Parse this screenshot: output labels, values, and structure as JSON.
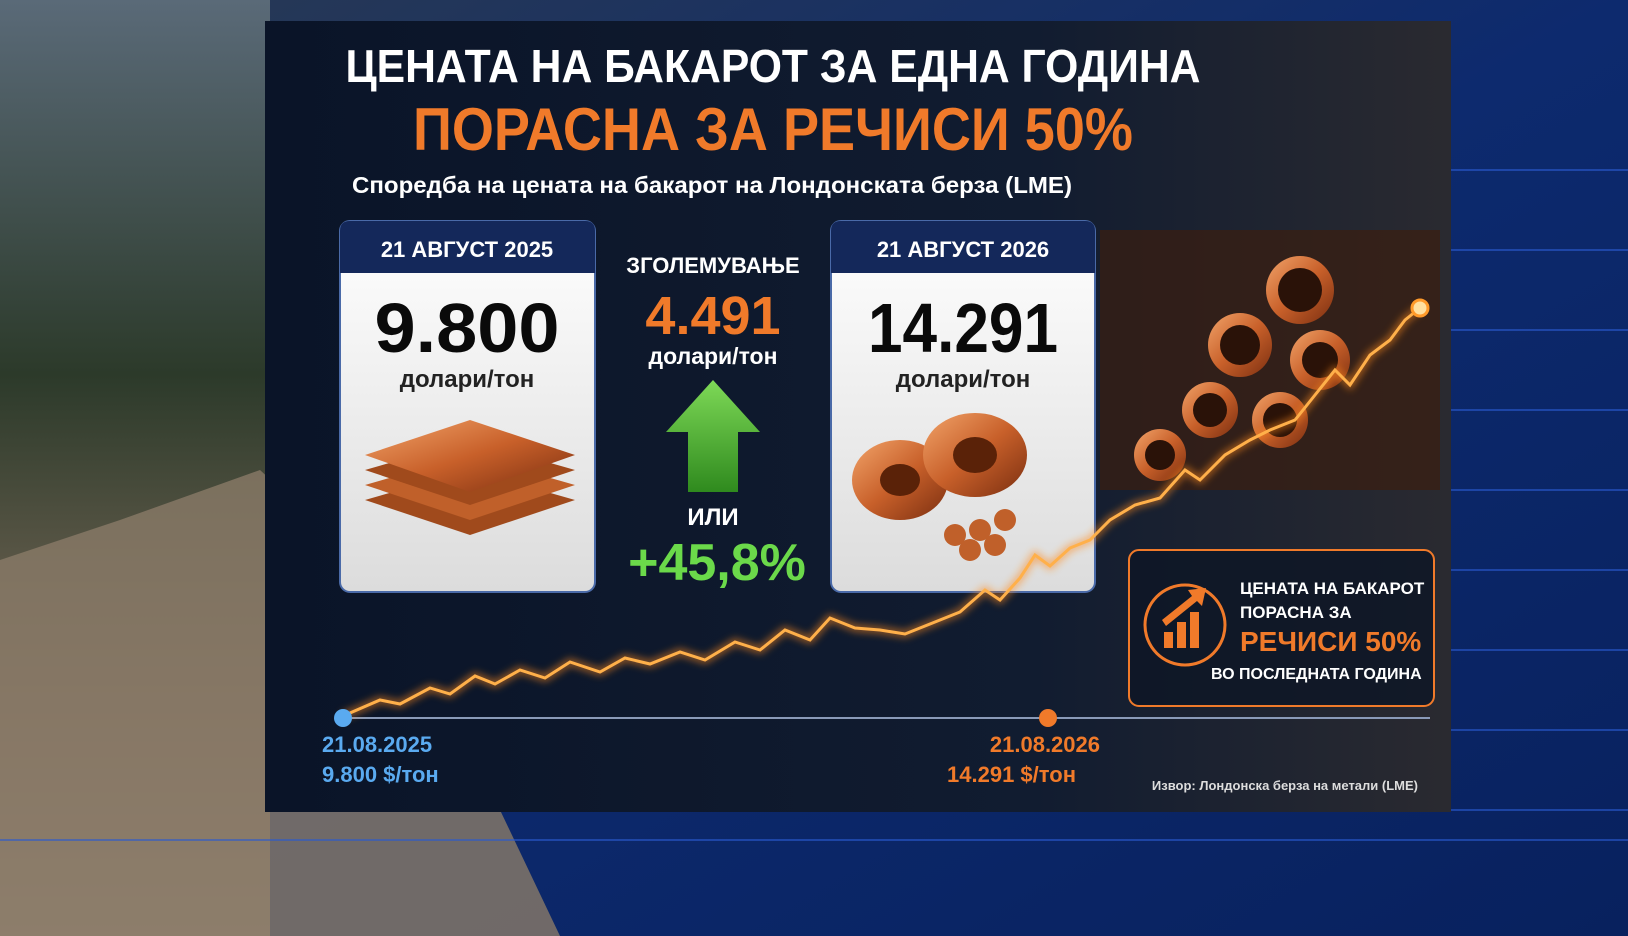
{
  "header": {
    "title": "ЦЕНАТА НА БАКАРОТ ЗА ЕДНА ГОДИНА",
    "headline": "ПОРАСНА ЗА РЕЧИСИ 50%",
    "subtitle": "Споредба на цената на бакарот на Лондонската берза (LME)"
  },
  "cards": [
    {
      "date": "21 АВГУСТ 2025",
      "value": "9.800",
      "unit": "долари/тон"
    },
    {
      "date": "21 АВГУСТ 2026",
      "value": "14.291",
      "unit": "долари/тон"
    }
  ],
  "increase": {
    "label": "ЗГОЛЕМУВАЊЕ",
    "value": "4.491",
    "unit": "долари/тон",
    "connector": "ИЛИ",
    "percent": "+45,8%"
  },
  "callout": {
    "lines": [
      "ЦЕНАТА НА БАКАРОТ",
      "ПОРАСНА ЗА"
    ],
    "highlight": "РЕЧИСИ 50%",
    "footer": "ВО ПОСЛЕДНАТА ГОДИНА"
  },
  "timeline": {
    "start": {
      "date": "21.08.2025",
      "price": "9.800 $/тон"
    },
    "end": {
      "date": "21.08.2026",
      "price": "14.291 $/тон"
    }
  },
  "source": "Извор: Лондонска берза на метали (LME)"
}
